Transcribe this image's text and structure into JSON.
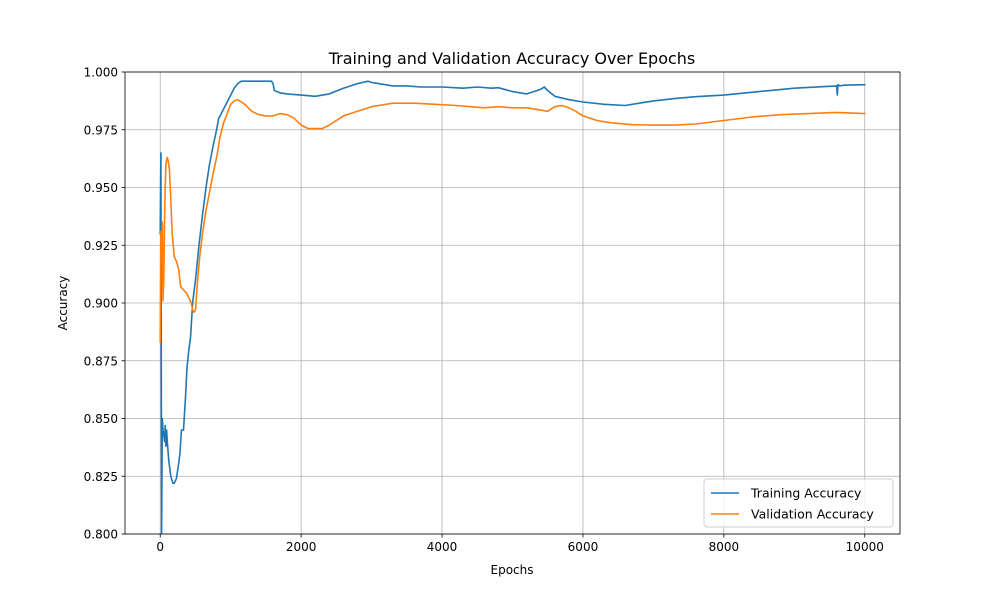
{
  "chart_data": {
    "type": "line",
    "title": "Training and Validation Accuracy Over Epochs",
    "xlabel": "Epochs",
    "ylabel": "Accuracy",
    "xlim": [
      -500,
      10500
    ],
    "ylim": [
      0.8,
      1.0
    ],
    "xticks": [
      0,
      2000,
      4000,
      6000,
      8000,
      10000
    ],
    "xtick_labels": [
      "0",
      "2000",
      "4000",
      "6000",
      "8000",
      "10000"
    ],
    "yticks": [
      0.8,
      0.825,
      0.85,
      0.875,
      0.9,
      0.925,
      0.95,
      0.975,
      1.0
    ],
    "ytick_labels": [
      "0.800",
      "0.825",
      "0.850",
      "0.875",
      "0.900",
      "0.925",
      "0.950",
      "0.975",
      "1.000"
    ],
    "grid": true,
    "legend_position": "lower-right",
    "series": [
      {
        "name": "Training Accuracy",
        "color": "#1f77b4",
        "x": [
          0,
          10,
          20,
          30,
          40,
          50,
          60,
          70,
          80,
          90,
          100,
          120,
          150,
          180,
          200,
          230,
          260,
          280,
          300,
          330,
          360,
          380,
          400,
          430,
          460,
          500,
          550,
          600,
          650,
          700,
          750,
          800,
          830,
          850,
          900,
          950,
          1000,
          1050,
          1100,
          1150,
          1200,
          1300,
          1400,
          1500,
          1580,
          1600,
          1620,
          1700,
          1800,
          2000,
          2200,
          2400,
          2600,
          2800,
          2950,
          3000,
          3100,
          3300,
          3500,
          3700,
          4000,
          4300,
          4500,
          4700,
          4800,
          5000,
          5200,
          5350,
          5400,
          5450,
          5500,
          5600,
          5800,
          6000,
          6300,
          6600,
          6800,
          7000,
          7300,
          7600,
          8000,
          8500,
          9000,
          9500,
          9600,
          9610,
          9620,
          9650,
          9700,
          10000
        ],
        "y": [
          0.93,
          0.965,
          0.8,
          0.85,
          0.845,
          0.843,
          0.84,
          0.847,
          0.838,
          0.845,
          0.84,
          0.832,
          0.825,
          0.822,
          0.822,
          0.824,
          0.83,
          0.835,
          0.845,
          0.845,
          0.86,
          0.872,
          0.878,
          0.885,
          0.9,
          0.91,
          0.925,
          0.938,
          0.95,
          0.96,
          0.968,
          0.975,
          0.98,
          0.981,
          0.984,
          0.987,
          0.99,
          0.993,
          0.995,
          0.996,
          0.996,
          0.996,
          0.996,
          0.996,
          0.996,
          0.995,
          0.992,
          0.991,
          0.9905,
          0.99,
          0.9895,
          0.9905,
          0.993,
          0.995,
          0.996,
          0.9955,
          0.995,
          0.994,
          0.994,
          0.9935,
          0.9935,
          0.993,
          0.9935,
          0.993,
          0.9932,
          0.9915,
          0.9905,
          0.992,
          0.9925,
          0.9935,
          0.992,
          0.9895,
          0.988,
          0.987,
          0.986,
          0.9855,
          0.9865,
          0.9875,
          0.9885,
          0.9893,
          0.99,
          0.9915,
          0.993,
          0.9938,
          0.994,
          0.99,
          0.9945,
          0.994,
          0.9943,
          0.9945
        ]
      },
      {
        "name": "Validation Accuracy",
        "color": "#ff7f0e",
        "x": [
          0,
          10,
          20,
          30,
          40,
          50,
          60,
          70,
          80,
          90,
          100,
          110,
          130,
          150,
          170,
          200,
          230,
          260,
          290,
          320,
          350,
          380,
          410,
          440,
          460,
          480,
          500,
          530,
          560,
          600,
          650,
          700,
          750,
          800,
          850,
          900,
          950,
          1000,
          1050,
          1100,
          1150,
          1200,
          1300,
          1400,
          1500,
          1600,
          1700,
          1800,
          1900,
          2000,
          2100,
          2200,
          2300,
          2400,
          2500,
          2600,
          2800,
          3000,
          3300,
          3600,
          3900,
          4200,
          4400,
          4600,
          4800,
          5000,
          5200,
          5400,
          5500,
          5600,
          5700,
          5800,
          5900,
          6000,
          6200,
          6400,
          6700,
          7000,
          7300,
          7600,
          8000,
          8400,
          8800,
          9200,
          9600,
          10000
        ],
        "y": [
          0.883,
          0.931,
          0.922,
          0.935,
          0.901,
          0.91,
          0.935,
          0.95,
          0.96,
          0.962,
          0.963,
          0.962,
          0.958,
          0.945,
          0.93,
          0.92,
          0.918,
          0.915,
          0.907,
          0.906,
          0.905,
          0.904,
          0.902,
          0.9,
          0.897,
          0.896,
          0.897,
          0.91,
          0.92,
          0.93,
          0.94,
          0.948,
          0.956,
          0.963,
          0.972,
          0.978,
          0.982,
          0.986,
          0.9875,
          0.988,
          0.987,
          0.986,
          0.983,
          0.9815,
          0.981,
          0.981,
          0.982,
          0.9815,
          0.98,
          0.977,
          0.9755,
          0.9755,
          0.9755,
          0.977,
          0.979,
          0.981,
          0.983,
          0.985,
          0.9865,
          0.9865,
          0.986,
          0.9855,
          0.985,
          0.9845,
          0.985,
          0.9845,
          0.9845,
          0.9835,
          0.983,
          0.985,
          0.9855,
          0.9845,
          0.983,
          0.981,
          0.979,
          0.978,
          0.9772,
          0.977,
          0.977,
          0.9775,
          0.979,
          0.9805,
          0.9815,
          0.982,
          0.9825,
          0.982
        ]
      }
    ]
  }
}
